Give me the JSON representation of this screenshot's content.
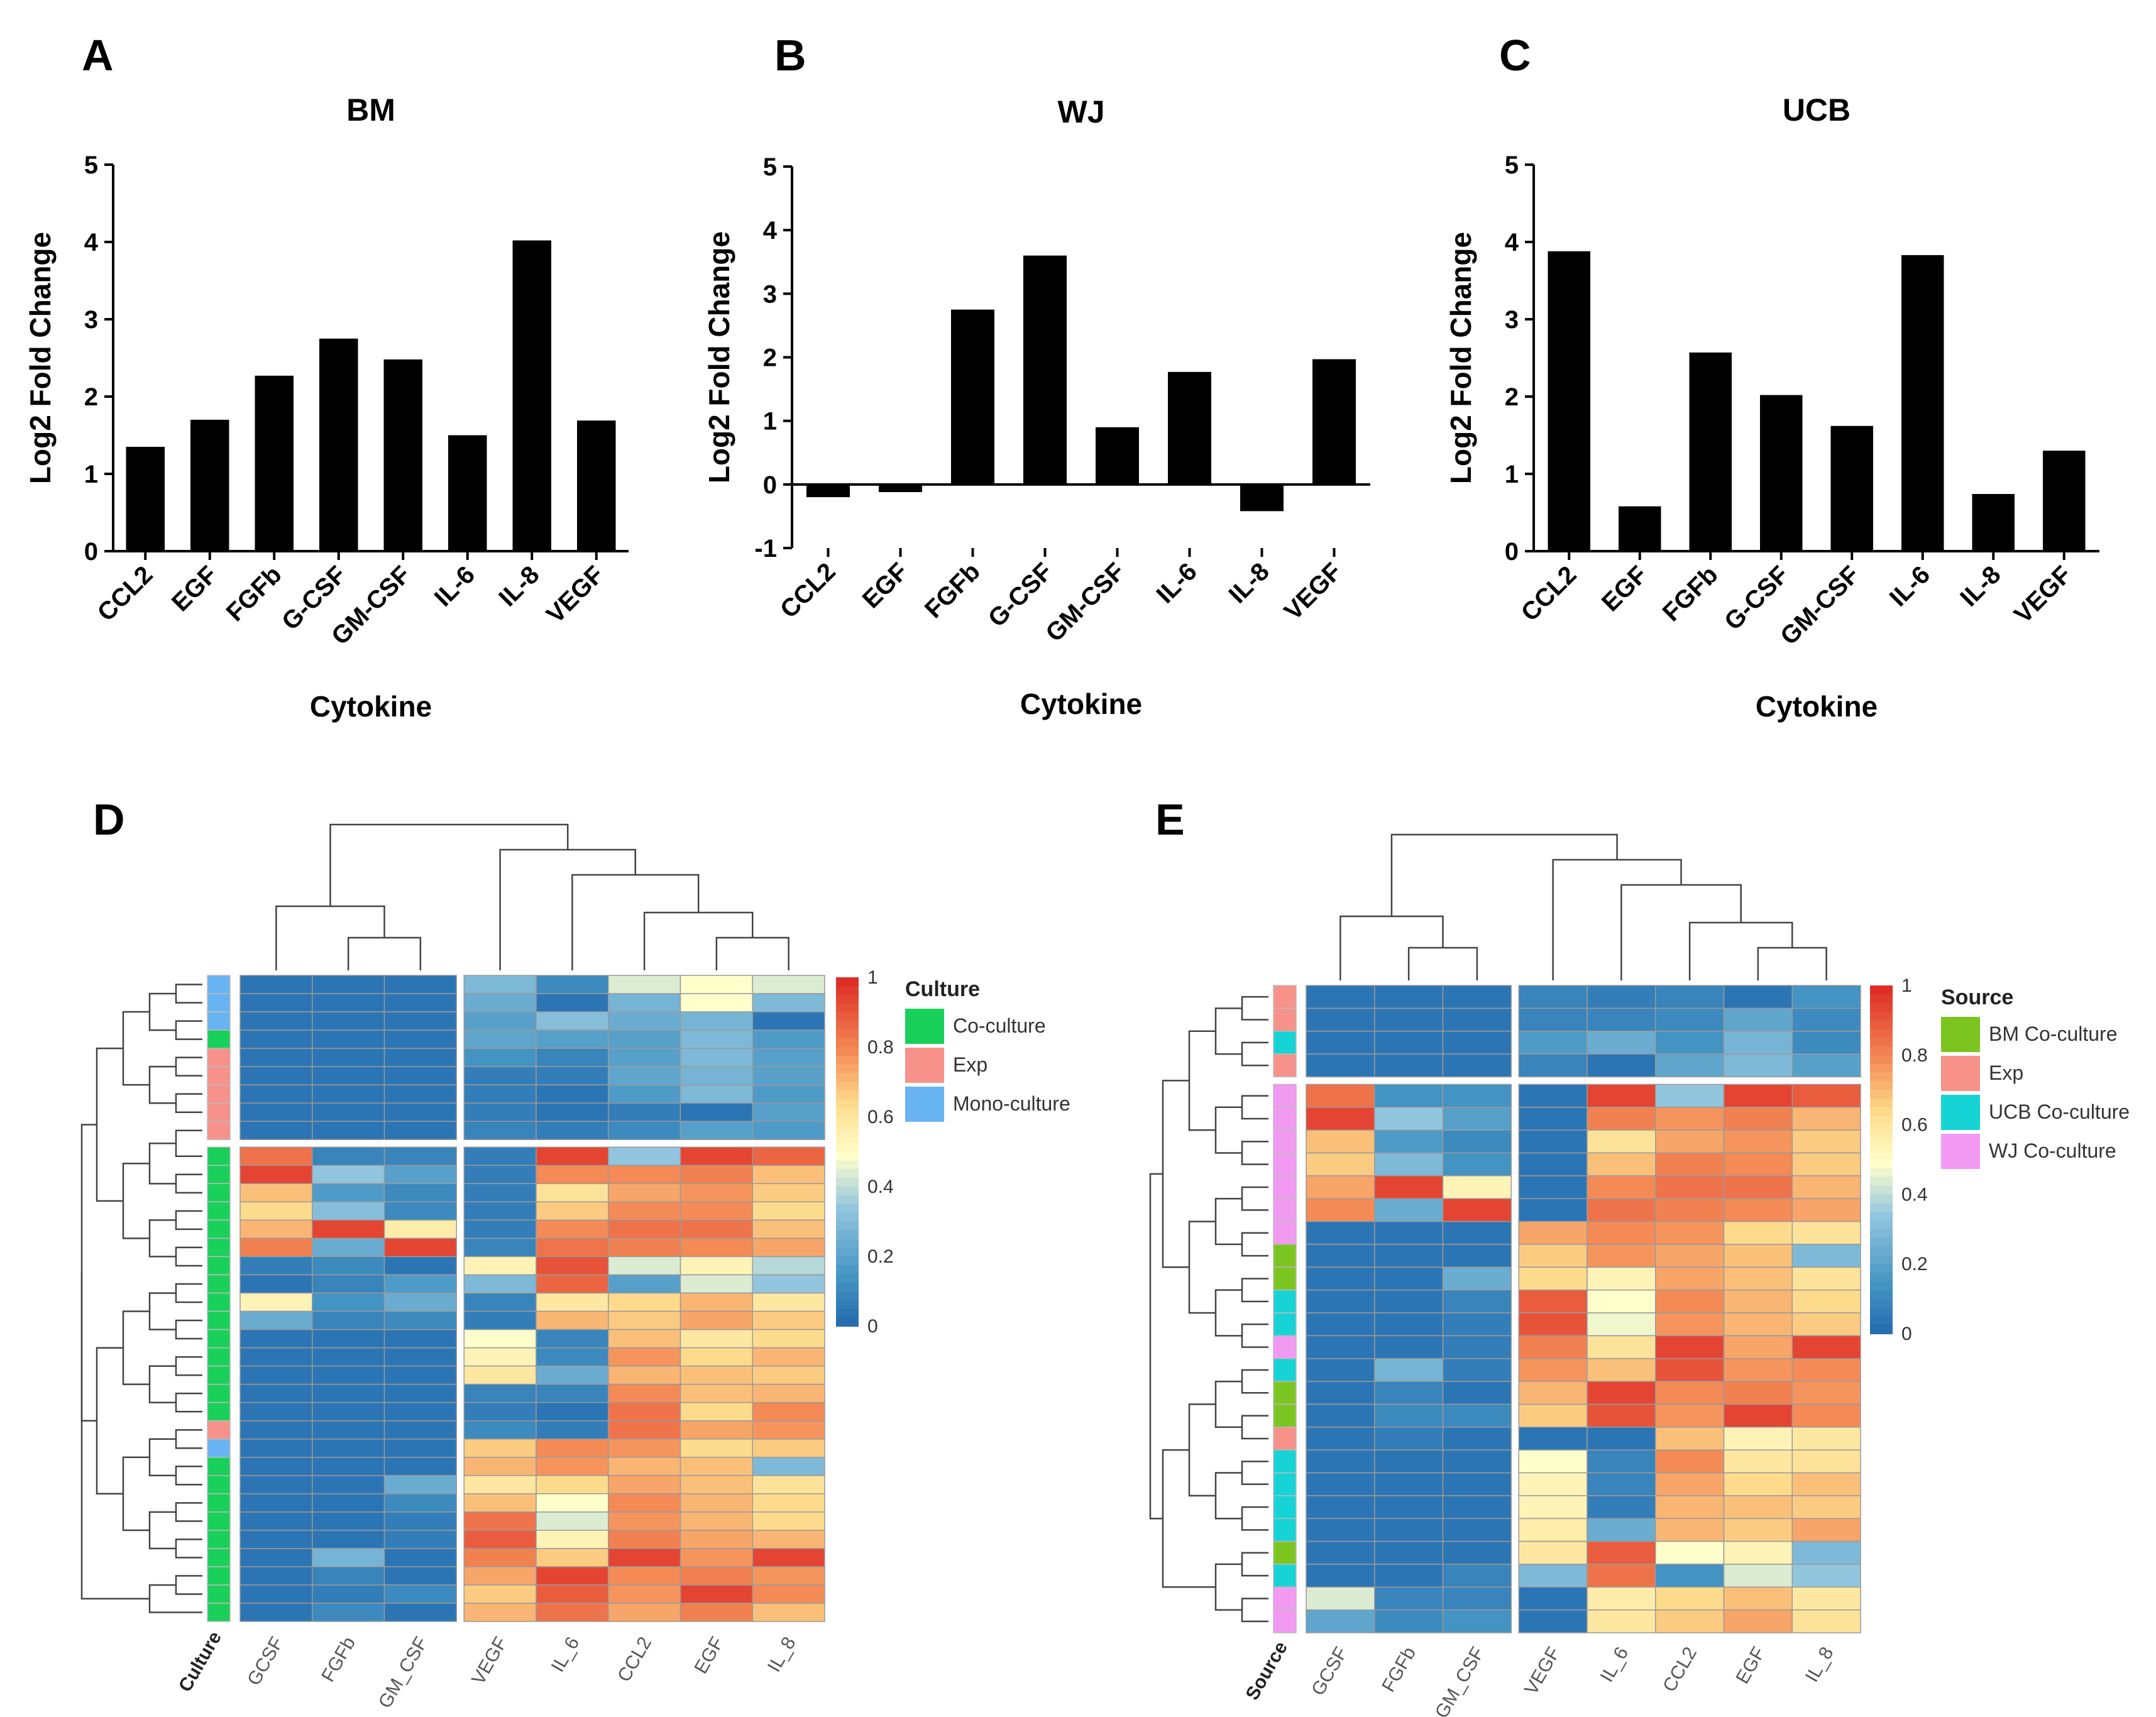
{
  "panels": {
    "A": "A",
    "B": "B",
    "C": "C",
    "D": "D",
    "E": "E"
  },
  "chart_data": [
    {
      "type": "bar",
      "panel": "A",
      "title": "BM",
      "xlabel": "Cytokine",
      "ylabel": "Log2 Fold Change",
      "categories": [
        "CCL2",
        "EGF",
        "FGFb",
        "G-CSF",
        "GM-CSF",
        "IL-6",
        "IL-8",
        "VEGF"
      ],
      "values": [
        1.35,
        1.7,
        2.27,
        2.75,
        2.48,
        1.5,
        4.02,
        1.69
      ],
      "ylim": [
        0,
        5
      ],
      "yticks": [
        "0",
        "1",
        "2",
        "3",
        "4",
        "5"
      ]
    },
    {
      "type": "bar",
      "panel": "B",
      "title": "WJ",
      "xlabel": "Cytokine",
      "ylabel": "Log2 Fold Change",
      "categories": [
        "CCL2",
        "EGF",
        "FGFb",
        "G-CSF",
        "GM-CSF",
        "IL-6",
        "IL-8",
        "VEGF"
      ],
      "values": [
        -0.2,
        -0.12,
        2.75,
        3.6,
        0.9,
        1.77,
        -0.42,
        1.97
      ],
      "ylim": [
        -1,
        5
      ],
      "yticks": [
        "-1",
        "0",
        "1",
        "2",
        "3",
        "4",
        "5"
      ]
    },
    {
      "type": "bar",
      "panel": "C",
      "title": "UCB",
      "xlabel": "Cytokine",
      "ylabel": "Log2 Fold Change",
      "categories": [
        "CCL2",
        "EGF",
        "FGFb",
        "G-CSF",
        "GM-CSF",
        "IL-6",
        "IL-8",
        "VEGF"
      ],
      "values": [
        3.88,
        0.58,
        2.57,
        2.02,
        1.62,
        3.83,
        0.74,
        1.3
      ],
      "ylim": [
        0,
        5
      ],
      "yticks": [
        "0",
        "1",
        "2",
        "3",
        "4",
        "5"
      ]
    },
    {
      "type": "heatmap",
      "panel": "D",
      "annotation_label": "Culture",
      "columns": [
        "GCSF",
        "FGFb",
        "GM_CSF",
        "VEGF",
        "IL_6",
        "CCL2",
        "EGF",
        "IL_8"
      ],
      "column_gap_after": 3,
      "row_gap_after": 9,
      "annotation_colors": {
        "Co-culture": "#19d05a",
        "Exp": "#f7928a",
        "Mono-culture": "#68b4f2"
      },
      "row_groups": [
        "Mono-culture",
        "Mono-culture",
        "Mono-culture",
        "Co-culture",
        "Exp",
        "Exp",
        "Exp",
        "Exp",
        "Exp",
        "Co-culture",
        "Co-culture",
        "Co-culture",
        "Co-culture",
        "Co-culture",
        "Co-culture",
        "Co-culture",
        "Co-culture",
        "Co-culture",
        "Co-culture",
        "Co-culture",
        "Co-culture",
        "Co-culture",
        "Co-culture",
        "Co-culture",
        "Exp",
        "Mono-culture",
        "Co-culture",
        "Co-culture",
        "Co-culture",
        "Co-culture",
        "Co-culture",
        "Co-culture",
        "Co-culture",
        "Co-culture",
        "Co-culture"
      ],
      "legend": {
        "title": "Culture",
        "items": [
          "Co-culture",
          "Exp",
          "Mono-culture"
        ]
      },
      "colorbar": {
        "ticks": [
          "1",
          "0.8",
          "0.6",
          "0.4",
          "0.2",
          "0"
        ]
      },
      "rows": [
        [
          0.05,
          0.05,
          0.05,
          0.3,
          0.12,
          0.45,
          0.5,
          0.45
        ],
        [
          0.05,
          0.05,
          0.05,
          0.25,
          0.05,
          0.28,
          0.5,
          0.3
        ],
        [
          0.05,
          0.05,
          0.05,
          0.2,
          0.32,
          0.25,
          0.28,
          0.05
        ],
        [
          0.05,
          0.05,
          0.05,
          0.22,
          0.2,
          0.2,
          0.3,
          0.18
        ],
        [
          0.05,
          0.05,
          0.05,
          0.15,
          0.1,
          0.2,
          0.3,
          0.2
        ],
        [
          0.05,
          0.05,
          0.05,
          0.08,
          0.08,
          0.22,
          0.28,
          0.2
        ],
        [
          0.05,
          0.05,
          0.05,
          0.08,
          0.05,
          0.18,
          0.3,
          0.18
        ],
        [
          0.05,
          0.05,
          0.05,
          0.08,
          0.05,
          0.08,
          0.05,
          0.2
        ],
        [
          0.05,
          0.05,
          0.05,
          0.1,
          0.08,
          0.12,
          0.2,
          0.18
        ],
        [
          0.85,
          0.1,
          0.1,
          0.08,
          0.95,
          0.35,
          0.95,
          0.88
        ],
        [
          0.95,
          0.35,
          0.2,
          0.08,
          0.8,
          0.8,
          0.82,
          0.7
        ],
        [
          0.7,
          0.18,
          0.12,
          0.08,
          0.62,
          0.75,
          0.78,
          0.68
        ],
        [
          0.65,
          0.32,
          0.12,
          0.08,
          0.68,
          0.8,
          0.8,
          0.65
        ],
        [
          0.72,
          0.95,
          0.58,
          0.08,
          0.8,
          0.85,
          0.85,
          0.7
        ],
        [
          0.82,
          0.25,
          0.95,
          0.1,
          0.85,
          0.82,
          0.8,
          0.75
        ],
        [
          0.08,
          0.12,
          0.05,
          0.55,
          0.92,
          0.45,
          0.55,
          0.4
        ],
        [
          0.05,
          0.1,
          0.18,
          0.3,
          0.88,
          0.2,
          0.45,
          0.35
        ],
        [
          0.55,
          0.15,
          0.25,
          0.1,
          0.6,
          0.65,
          0.72,
          0.6
        ],
        [
          0.25,
          0.1,
          0.12,
          0.08,
          0.72,
          0.68,
          0.75,
          0.68
        ],
        [
          0.05,
          0.05,
          0.05,
          0.5,
          0.1,
          0.7,
          0.6,
          0.65
        ],
        [
          0.05,
          0.05,
          0.05,
          0.55,
          0.12,
          0.78,
          0.65,
          0.72
        ],
        [
          0.05,
          0.05,
          0.05,
          0.6,
          0.25,
          0.72,
          0.7,
          0.68
        ],
        [
          0.05,
          0.05,
          0.05,
          0.1,
          0.1,
          0.8,
          0.7,
          0.72
        ],
        [
          0.05,
          0.05,
          0.05,
          0.08,
          0.05,
          0.85,
          0.65,
          0.8
        ],
        [
          0.05,
          0.05,
          0.05,
          0.12,
          0.08,
          0.85,
          0.75,
          0.78
        ],
        [
          0.05,
          0.05,
          0.05,
          0.68,
          0.8,
          0.78,
          0.65,
          0.68
        ],
        [
          0.05,
          0.05,
          0.05,
          0.72,
          0.78,
          0.72,
          0.7,
          0.3
        ],
        [
          0.05,
          0.05,
          0.25,
          0.6,
          0.65,
          0.75,
          0.7,
          0.62
        ],
        [
          0.05,
          0.05,
          0.12,
          0.7,
          0.5,
          0.8,
          0.72,
          0.65
        ],
        [
          0.05,
          0.05,
          0.08,
          0.85,
          0.45,
          0.78,
          0.72,
          0.65
        ],
        [
          0.05,
          0.05,
          0.08,
          0.9,
          0.55,
          0.82,
          0.75,
          0.72
        ],
        [
          0.05,
          0.28,
          0.05,
          0.82,
          0.68,
          0.95,
          0.78,
          0.95
        ],
        [
          0.05,
          0.1,
          0.05,
          0.75,
          0.95,
          0.8,
          0.82,
          0.78
        ],
        [
          0.05,
          0.08,
          0.12,
          0.68,
          0.9,
          0.78,
          0.95,
          0.8
        ],
        [
          0.05,
          0.12,
          0.05,
          0.72,
          0.85,
          0.75,
          0.82,
          0.7
        ]
      ]
    },
    {
      "type": "heatmap",
      "panel": "E",
      "annotation_label": "Source",
      "columns": [
        "GCSF",
        "FGFb",
        "GM_CSF",
        "VEGF",
        "IL_6",
        "CCL2",
        "EGF",
        "IL_8"
      ],
      "column_gap_after": 3,
      "row_gap_after": 4,
      "annotation_colors": {
        "BM Co-culture": "#7cc520",
        "Exp": "#f7928a",
        "UCB Co-culture": "#16d4d6",
        "WJ Co-culture": "#f29af2"
      },
      "row_groups": [
        "Exp",
        "Exp",
        "UCB Co-culture",
        "Exp",
        "WJ Co-culture",
        "WJ Co-culture",
        "WJ Co-culture",
        "WJ Co-culture",
        "WJ Co-culture",
        "WJ Co-culture",
        "WJ Co-culture",
        "BM Co-culture",
        "BM Co-culture",
        "UCB Co-culture",
        "UCB Co-culture",
        "WJ Co-culture",
        "UCB Co-culture",
        "BM Co-culture",
        "BM Co-culture",
        "Exp",
        "UCB Co-culture",
        "UCB Co-culture",
        "UCB Co-culture",
        "UCB Co-culture",
        "BM Co-culture",
        "UCB Co-culture",
        "WJ Co-culture",
        "WJ Co-culture"
      ],
      "legend": {
        "title": "Source",
        "items": [
          "BM Co-culture",
          "Exp",
          "UCB Co-culture",
          "WJ Co-culture"
        ]
      },
      "colorbar": {
        "ticks": [
          "1",
          "0.8",
          "0.6",
          "0.4",
          "0.2",
          "0"
        ]
      },
      "rows": [
        [
          0.05,
          0.05,
          0.05,
          0.1,
          0.08,
          0.1,
          0.05,
          0.15
        ],
        [
          0.05,
          0.05,
          0.05,
          0.1,
          0.1,
          0.12,
          0.22,
          0.12
        ],
        [
          0.05,
          0.05,
          0.05,
          0.18,
          0.25,
          0.15,
          0.28,
          0.12
        ],
        [
          0.05,
          0.05,
          0.05,
          0.1,
          0.05,
          0.22,
          0.3,
          0.2
        ],
        [
          0.85,
          0.15,
          0.15,
          0.05,
          0.95,
          0.35,
          0.95,
          0.9
        ],
        [
          0.95,
          0.35,
          0.2,
          0.05,
          0.82,
          0.78,
          0.82,
          0.72
        ],
        [
          0.7,
          0.18,
          0.12,
          0.05,
          0.62,
          0.75,
          0.78,
          0.68
        ],
        [
          0.68,
          0.3,
          0.15,
          0.05,
          0.7,
          0.82,
          0.8,
          0.68
        ],
        [
          0.75,
          0.95,
          0.55,
          0.05,
          0.8,
          0.85,
          0.85,
          0.72
        ],
        [
          0.8,
          0.25,
          0.95,
          0.05,
          0.85,
          0.82,
          0.8,
          0.75
        ],
        [
          0.05,
          0.05,
          0.05,
          0.75,
          0.8,
          0.78,
          0.65,
          0.62
        ],
        [
          0.05,
          0.05,
          0.05,
          0.68,
          0.78,
          0.75,
          0.7,
          0.3
        ],
        [
          0.05,
          0.05,
          0.25,
          0.65,
          0.55,
          0.75,
          0.7,
          0.62
        ],
        [
          0.05,
          0.05,
          0.1,
          0.9,
          0.5,
          0.8,
          0.72,
          0.65
        ],
        [
          0.05,
          0.05,
          0.08,
          0.92,
          0.48,
          0.78,
          0.72,
          0.68
        ],
        [
          0.05,
          0.05,
          0.08,
          0.82,
          0.62,
          0.95,
          0.75,
          0.95
        ],
        [
          0.05,
          0.28,
          0.08,
          0.78,
          0.7,
          0.92,
          0.78,
          0.8
        ],
        [
          0.05,
          0.1,
          0.05,
          0.72,
          0.95,
          0.8,
          0.82,
          0.78
        ],
        [
          0.05,
          0.12,
          0.12,
          0.68,
          0.92,
          0.78,
          0.95,
          0.8
        ],
        [
          0.05,
          0.08,
          0.05,
          0.05,
          0.05,
          0.7,
          0.55,
          0.6
        ],
        [
          0.05,
          0.05,
          0.05,
          0.5,
          0.1,
          0.8,
          0.6,
          0.62
        ],
        [
          0.05,
          0.05,
          0.05,
          0.55,
          0.1,
          0.75,
          0.65,
          0.7
        ],
        [
          0.05,
          0.05,
          0.05,
          0.55,
          0.08,
          0.72,
          0.7,
          0.68
        ],
        [
          0.05,
          0.05,
          0.05,
          0.58,
          0.25,
          0.72,
          0.68,
          0.75
        ],
        [
          0.05,
          0.05,
          0.05,
          0.6,
          0.9,
          0.5,
          0.55,
          0.3
        ],
        [
          0.05,
          0.05,
          0.1,
          0.3,
          0.85,
          0.15,
          0.45,
          0.35
        ],
        [
          0.45,
          0.1,
          0.1,
          0.05,
          0.58,
          0.65,
          0.7,
          0.6
        ],
        [
          0.22,
          0.12,
          0.15,
          0.05,
          0.6,
          0.68,
          0.75,
          0.62
        ]
      ]
    }
  ]
}
